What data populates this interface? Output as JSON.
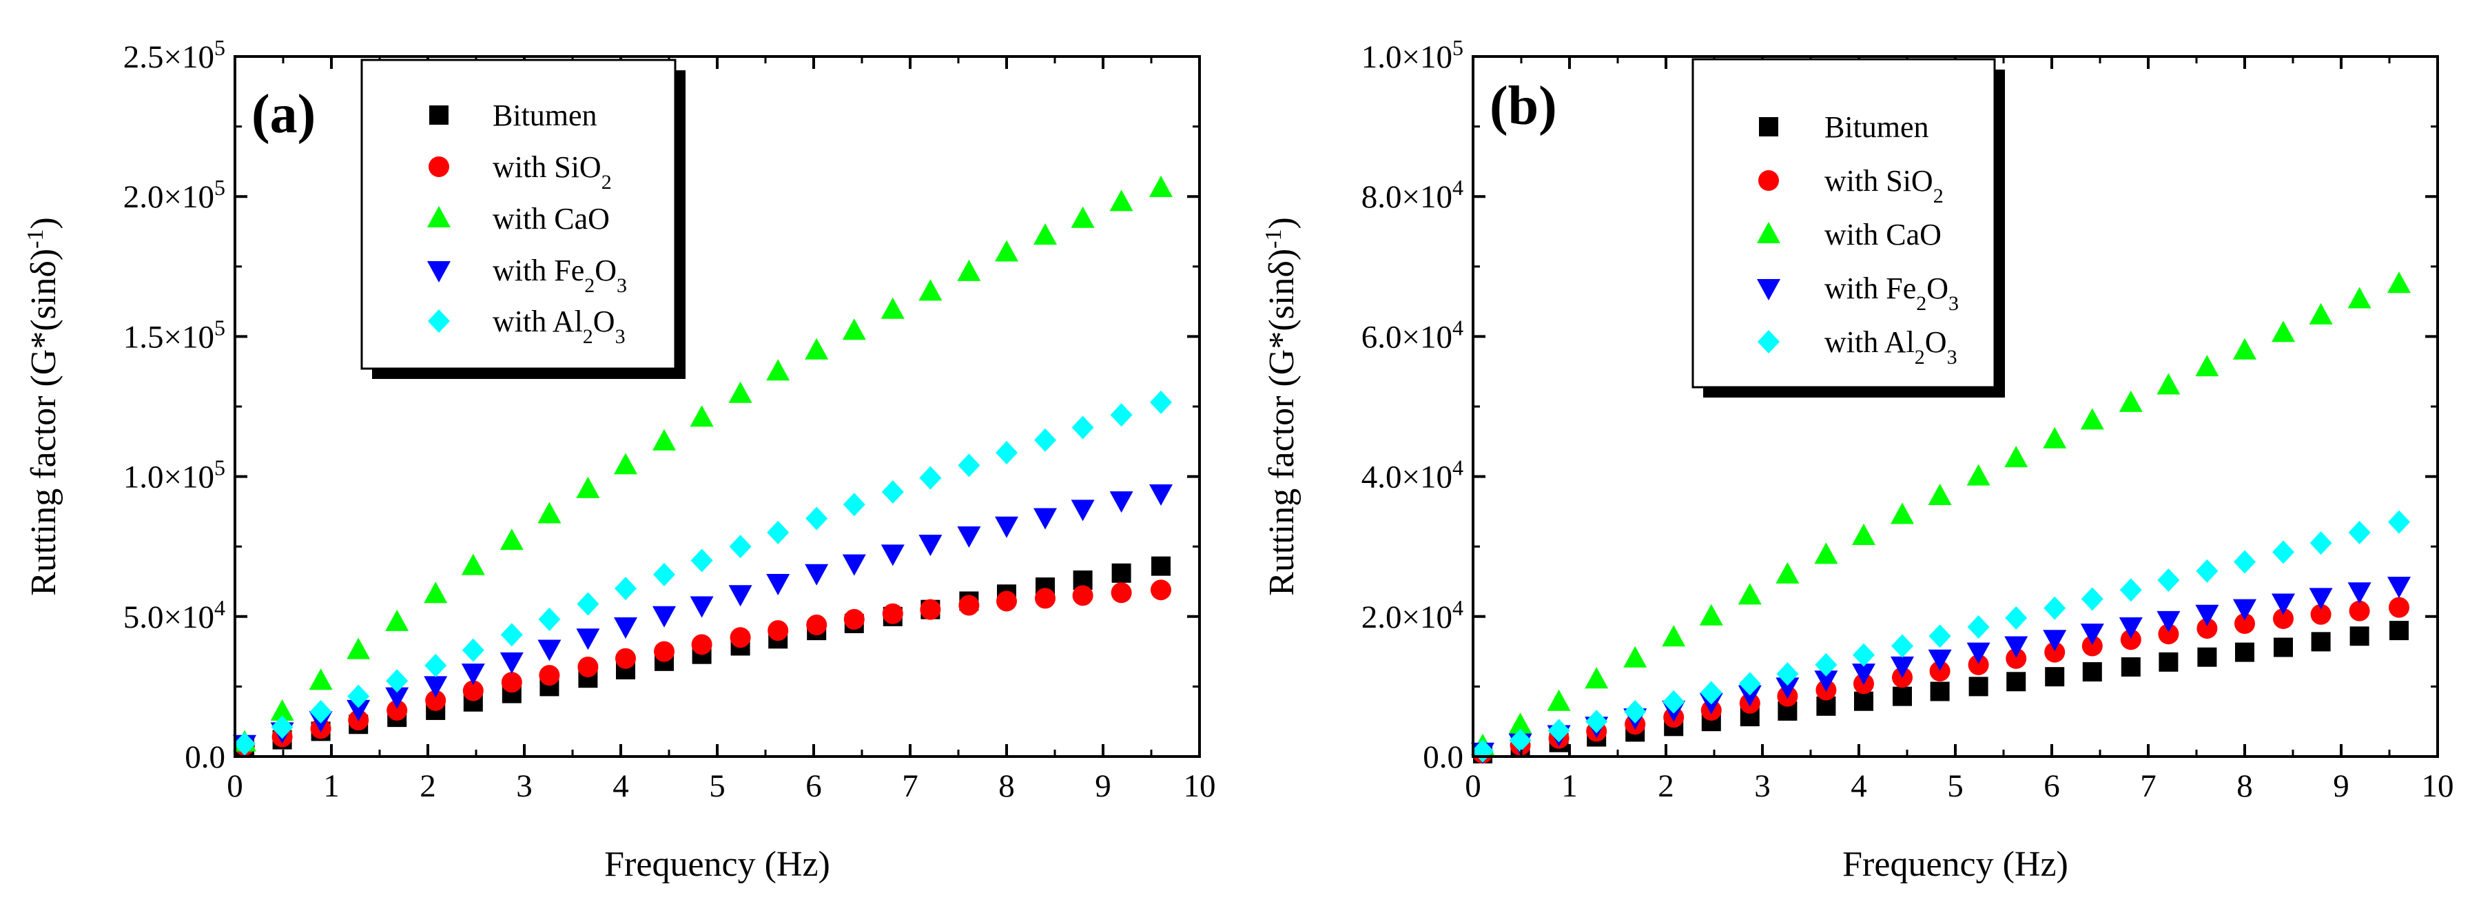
{
  "chart_data": [
    {
      "type": "scatter",
      "panel_label": "(a)",
      "xlabel": "Frequency (Hz)",
      "ylabel": "Rutting factor  (G*(sinδ)",
      "ylabel_sup": "-1",
      "ylabel_tail": ")",
      "xlim": [
        0,
        10
      ],
      "ylim": [
        0,
        250000
      ],
      "x_ticks": [
        0,
        1,
        2,
        3,
        4,
        5,
        6,
        7,
        8,
        9,
        10
      ],
      "y_ticks": [
        {
          "value": 0,
          "mant": "0.0",
          "exp": ""
        },
        {
          "value": 50000,
          "mant": "5.0×10",
          "exp": "4"
        },
        {
          "value": 100000,
          "mant": "1.0×10",
          "exp": "5"
        },
        {
          "value": 150000,
          "mant": "1.5×10",
          "exp": "5"
        },
        {
          "value": 200000,
          "mant": "2.0×10",
          "exp": "5"
        },
        {
          "value": 250000,
          "mant": "2.5×10",
          "exp": "5"
        }
      ],
      "grid": false,
      "legend_position": "top-left",
      "x": [
        0.1,
        0.49,
        0.89,
        1.28,
        1.68,
        2.08,
        2.47,
        2.87,
        3.26,
        3.66,
        4.05,
        4.45,
        4.84,
        5.24,
        5.63,
        6.03,
        6.42,
        6.82,
        7.21,
        7.61,
        8.0,
        8.4,
        8.79,
        9.19,
        9.6
      ],
      "series": [
        {
          "name": "Bitumen",
          "name_main": "Bitumen",
          "name_sub": "",
          "name_tail": "",
          "marker": "square",
          "color": "#000000",
          "values": [
            3000,
            6000,
            9000,
            11500,
            14000,
            16500,
            19500,
            22500,
            25000,
            28000,
            31000,
            34000,
            36500,
            39500,
            42000,
            45000,
            47500,
            50000,
            52500,
            55500,
            58000,
            60500,
            63000,
            65500,
            68000
          ]
        },
        {
          "name": "with SiO2",
          "name_main": "with SiO",
          "name_sub": "2",
          "name_tail": "",
          "marker": "circle",
          "color": "#ff0000",
          "values": [
            4000,
            7000,
            10000,
            13000,
            16500,
            20000,
            23500,
            26500,
            29000,
            32000,
            35000,
            37500,
            40000,
            42500,
            45000,
            47000,
            49000,
            51000,
            52500,
            54000,
            55500,
            56500,
            57500,
            58500,
            59500
          ]
        },
        {
          "name": "with CaO",
          "name_main": "with CaO",
          "name_sub": "",
          "name_tail": "",
          "marker": "triangle-up",
          "color": "#00ff00",
          "values": [
            5000,
            16000,
            27000,
            38000,
            48000,
            58000,
            68000,
            77000,
            86500,
            95500,
            104000,
            112500,
            121000,
            129500,
            137500,
            145000,
            152000,
            159500,
            166000,
            173000,
            180000,
            186000,
            192000,
            198000,
            203000
          ]
        },
        {
          "name": "with Fe2O3",
          "name_main": "with Fe",
          "name_sub": "2",
          "name_tail": "O3",
          "marker": "triangle-down",
          "color": "#0000ff",
          "values": [
            4500,
            9000,
            13000,
            17000,
            21500,
            25500,
            30000,
            34000,
            38500,
            42500,
            46500,
            50500,
            54000,
            58000,
            62000,
            65500,
            69000,
            72500,
            76000,
            79000,
            82500,
            85500,
            88500,
            91500,
            94000
          ]
        },
        {
          "name": "with Al2O3",
          "name_main": "with Al",
          "name_sub": "2",
          "name_tail": "O3",
          "marker": "diamond",
          "color": "#00ffff",
          "values": [
            4500,
            10500,
            16000,
            21500,
            27000,
            32500,
            38000,
            43500,
            49000,
            54500,
            60000,
            65000,
            70000,
            75000,
            80000,
            85000,
            90000,
            94500,
            99500,
            104000,
            108500,
            113000,
            117500,
            122000,
            126500
          ]
        }
      ]
    },
    {
      "type": "scatter",
      "panel_label": "(b)",
      "xlabel": "Frequency (Hz)",
      "ylabel": "Rutting factor  (G*(sinδ)",
      "ylabel_sup": "-1",
      "ylabel_tail": ")",
      "xlim": [
        0,
        10
      ],
      "ylim": [
        0,
        100000
      ],
      "x_ticks": [
        0,
        1,
        2,
        3,
        4,
        5,
        6,
        7,
        8,
        9,
        10
      ],
      "y_ticks": [
        {
          "value": 0,
          "mant": "0.0",
          "exp": ""
        },
        {
          "value": 20000,
          "mant": "2.0×10",
          "exp": "4"
        },
        {
          "value": 40000,
          "mant": "4.0×10",
          "exp": "4"
        },
        {
          "value": 60000,
          "mant": "6.0×10",
          "exp": "4"
        },
        {
          "value": 80000,
          "mant": "8.0×10",
          "exp": "4"
        },
        {
          "value": 100000,
          "mant": "1.0×10",
          "exp": "5"
        }
      ],
      "grid": false,
      "legend_position": "top-left",
      "x": [
        0.1,
        0.49,
        0.89,
        1.28,
        1.68,
        2.08,
        2.47,
        2.87,
        3.26,
        3.66,
        4.05,
        4.45,
        4.84,
        5.24,
        5.63,
        6.03,
        6.42,
        6.82,
        7.21,
        7.61,
        8.0,
        8.4,
        8.79,
        9.19,
        9.6
      ],
      "series": [
        {
          "name": "Bitumen",
          "name_main": "Bitumen",
          "name_sub": "",
          "name_tail": "",
          "marker": "square",
          "color": "#000000",
          "values": [
            400,
            1200,
            2000,
            2800,
            3500,
            4300,
            5000,
            5700,
            6500,
            7200,
            7900,
            8600,
            9300,
            10000,
            10700,
            11400,
            12100,
            12800,
            13500,
            14200,
            14900,
            15600,
            16400,
            17200,
            18000
          ]
        },
        {
          "name": "with SiO2",
          "name_main": "with SiO",
          "name_sub": "2",
          "name_tail": "",
          "marker": "circle",
          "color": "#ff0000",
          "values": [
            500,
            1600,
            2600,
            3600,
            4600,
            5600,
            6600,
            7600,
            8600,
            9500,
            10400,
            11300,
            12200,
            13100,
            14000,
            14900,
            15800,
            16700,
            17500,
            18300,
            19000,
            19700,
            20300,
            20800,
            21300
          ]
        },
        {
          "name": "with CaO",
          "name_main": "with CaO",
          "name_sub": "",
          "name_tail": "",
          "marker": "triangle-up",
          "color": "#00ff00",
          "values": [
            1500,
            4500,
            7800,
            11000,
            14000,
            17000,
            20000,
            23000,
            26000,
            28800,
            31500,
            34500,
            37200,
            40000,
            42600,
            45300,
            48000,
            50500,
            53000,
            55600,
            58000,
            60500,
            63000,
            65300,
            67500
          ]
        },
        {
          "name": "with Fe2O3",
          "name_main": "with Fe",
          "name_sub": "2",
          "name_tail": "O3",
          "marker": "triangle-down",
          "color": "#0000ff",
          "values": [
            700,
            2000,
            3200,
            4400,
            5600,
            6700,
            7800,
            8900,
            10000,
            11000,
            12000,
            13000,
            14000,
            15000,
            15900,
            16800,
            17700,
            18600,
            19500,
            20400,
            21200,
            22000,
            22800,
            23600,
            24400
          ]
        },
        {
          "name": "with Al2O3",
          "name_main": "with Al",
          "name_sub": "2",
          "name_tail": "O3",
          "marker": "diamond",
          "color": "#00ffff",
          "values": [
            800,
            2300,
            3700,
            5000,
            6400,
            7800,
            9100,
            10400,
            11800,
            13100,
            14500,
            15800,
            17200,
            18500,
            19800,
            21200,
            22500,
            23800,
            25200,
            26500,
            27800,
            29200,
            30500,
            32000,
            33500
          ]
        }
      ]
    }
  ]
}
